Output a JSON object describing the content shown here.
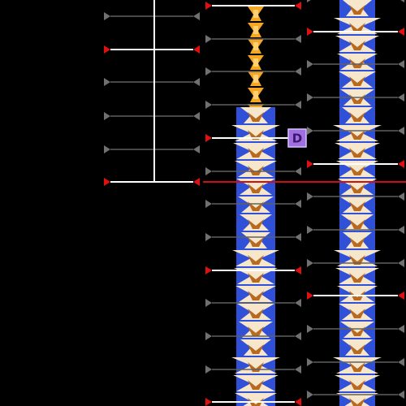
{
  "marker": {
    "label": "D"
  }
}
